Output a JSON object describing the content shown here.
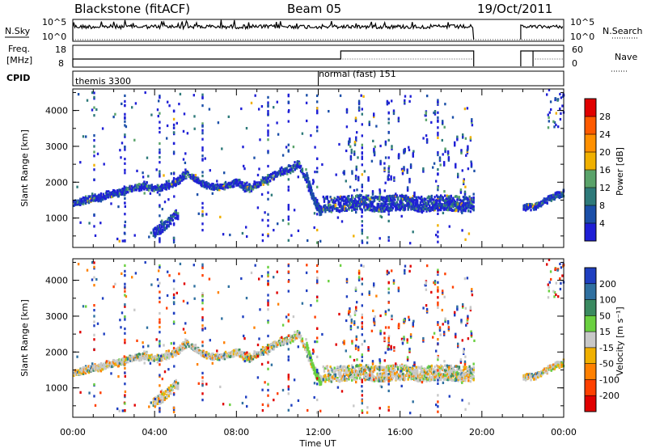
{
  "header": {
    "station": "Blackstone (fitACF)",
    "beam": "Beam 05",
    "date": "19/Oct/2011"
  },
  "summary_panels": {
    "nsky": {
      "label": "N.Sky",
      "right_label": "N.Search",
      "tick_top": "10^5",
      "tick_bottom": "10^0"
    },
    "freq": {
      "label_line1": "Freq.",
      "label_line2": "[MHz]",
      "tick_top": "18",
      "tick_bottom": "8",
      "right_tick_top": "60",
      "right_tick_bottom": "0",
      "right_label": "Nave"
    },
    "cpid": {
      "label": "CPID",
      "programs": [
        {
          "name": "themis 3300",
          "start_hour": 0
        },
        {
          "name": "normal (fast) 151",
          "start_hour": 12
        }
      ]
    }
  },
  "chart_data": [
    {
      "type": "heatmap",
      "title": "Power",
      "xlabel": "",
      "ylabel": "Slant Range [km]",
      "xlim": [
        0,
        24
      ],
      "ylim": [
        180,
        4600
      ],
      "yticks": [
        1000,
        2000,
        3000,
        4000
      ],
      "colorbar": {
        "label": "Power [dB]",
        "ticks": [
          4,
          8,
          12,
          16,
          20,
          24,
          28
        ],
        "colors": [
          "#1f1fd6",
          "#1b4fa8",
          "#2e7a7a",
          "#5aa36a",
          "#f0b000",
          "#ff9000",
          "#ff5a00",
          "#e00000"
        ]
      },
      "features": [
        {
          "name": "E/F-region scatter band",
          "hours": [
            0,
            0.5,
            1,
            1.5,
            2,
            2.5,
            3,
            3.5,
            4,
            4.5,
            5,
            5.5,
            6,
            6.5,
            7,
            7.5,
            8,
            8.5,
            9,
            9.5,
            10,
            10.5,
            11,
            11.5,
            12
          ],
          "range_km": [
            1400,
            1500,
            1550,
            1600,
            1700,
            1750,
            1850,
            1900,
            1800,
            1900,
            2000,
            2250,
            2050,
            1900,
            1850,
            1900,
            2000,
            1800,
            1950,
            2100,
            2250,
            2350,
            2500,
            1800,
            1250
          ]
        },
        {
          "name": "near-range patch",
          "hours": [
            4,
            4.5,
            5
          ],
          "range_km": [
            600,
            800,
            1100
          ]
        },
        {
          "name": "post-midday band",
          "hours": [
            13,
            14,
            15,
            16,
            17,
            18,
            19,
            19.6
          ],
          "range_km": [
            1300,
            1350,
            1300,
            1350,
            1300,
            1350,
            1300,
            1300
          ]
        },
        {
          "name": "late band",
          "hours": [
            22,
            22.5,
            23,
            23.5,
            24
          ],
          "range_km": [
            1300,
            1300,
            1450,
            1600,
            1700
          ]
        }
      ]
    },
    {
      "type": "heatmap",
      "title": "Velocity",
      "xlabel": "Time UT",
      "ylabel": "Slant Range [km]",
      "xlim": [
        0,
        24
      ],
      "ylim": [
        180,
        4600
      ],
      "xticks": [
        "00:00",
        "04:00",
        "08:00",
        "12:00",
        "16:00",
        "20:00",
        "00:00"
      ],
      "yticks": [
        1000,
        2000,
        3000,
        4000
      ],
      "colorbar": {
        "label": "Velocity [m s⁻¹]",
        "ticks": [
          200,
          100,
          50,
          15,
          -15,
          -50,
          -100,
          -200
        ],
        "colors": [
          "#1f3fc0",
          "#2f70a0",
          "#3a8a60",
          "#6ad040",
          "#c8c8c8",
          "#f0b000",
          "#ff8000",
          "#ff4000",
          "#e00000"
        ]
      }
    }
  ]
}
